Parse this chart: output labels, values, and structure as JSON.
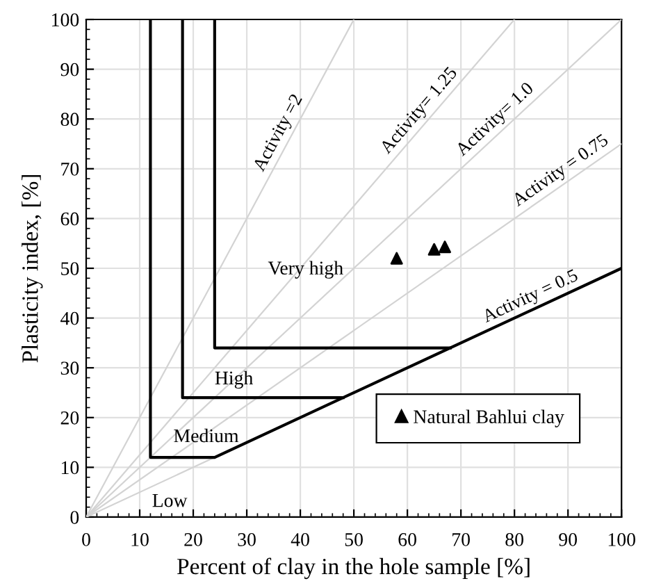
{
  "chart_data": {
    "type": "line",
    "xlabel": "Percent of clay in the hole sample [%]",
    "ylabel": "Plasticity index, [%]",
    "xlim": [
      0,
      100
    ],
    "ylim": [
      0,
      100
    ],
    "xticks": [
      0,
      10,
      20,
      30,
      40,
      50,
      60,
      70,
      80,
      90,
      100
    ],
    "yticks": [
      0,
      10,
      20,
      30,
      40,
      50,
      60,
      70,
      80,
      90,
      100
    ],
    "grid": true,
    "legend": "bottom right",
    "line_style": "solid",
    "series": [
      {
        "color": "#d3d3d3",
        "x": [
          0,
          50
        ],
        "values": [
          0,
          100
        ]
      },
      {
        "color": "#d3d3d3",
        "x": [
          0,
          80
        ],
        "values": [
          0,
          100
        ]
      },
      {
        "color": "#d3d3d3",
        "x": [
          0,
          100
        ],
        "values": [
          0,
          100
        ]
      },
      {
        "color": "#d3d3d3",
        "x": [
          0,
          100
        ],
        "values": [
          0,
          75
        ]
      },
      {
        "color": "#d3d3d3",
        "x": [
          0,
          24
        ],
        "values": [
          0,
          12
        ]
      },
      {
        "color": "#000000",
        "x": [
          12,
          12,
          24,
          100
        ],
        "values": [
          100,
          12,
          12,
          50
        ]
      },
      {
        "color": "#000000",
        "x": [
          18,
          18,
          48
        ],
        "values": [
          100,
          24,
          24
        ]
      },
      {
        "color": "#000000",
        "x": [
          24,
          24,
          68
        ],
        "values": [
          100,
          34,
          34
        ]
      },
      {
        "type": "scatter",
        "name": "Natural Bahlui clay",
        "color": "#000000",
        "marker": "triangle",
        "x": [
          58,
          65,
          67
        ],
        "values": [
          52,
          53.8,
          54.3
        ]
      }
    ],
    "annotations": [
      {
        "text": "Activity =2",
        "x": 38,
        "y": 76
      },
      {
        "text": "Activity= 1.25",
        "x": 64,
        "y": 80
      },
      {
        "text": "Activity= 1.0",
        "x": 78,
        "y": 78
      },
      {
        "text": "Activity = 0.75",
        "x": 90,
        "y": 67.5
      },
      {
        "text": "Activity = 0.5",
        "x": 84,
        "y": 42
      },
      "Very high",
      "High",
      "Medium",
      "Low"
    ]
  }
}
